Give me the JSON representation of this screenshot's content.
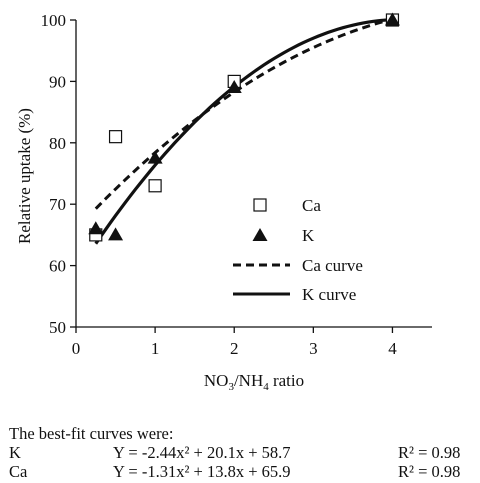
{
  "chart_data": {
    "type": "scatter",
    "xlabel": "NO3/NH4 ratio",
    "xlabel_parts": {
      "a": "NO",
      "a_sub": "3",
      "b": "/NH",
      "b_sub": "4",
      "c": " ratio"
    },
    "ylabel": "Relative uptake (%)",
    "xlim": [
      0,
      4.5
    ],
    "ylim": [
      50,
      100
    ],
    "x_ticks": [
      0,
      1,
      2,
      3,
      4
    ],
    "y_ticks": [
      50,
      60,
      70,
      80,
      90,
      100
    ],
    "grid": false,
    "legend_position": "center-right",
    "series": [
      {
        "name": "Ca",
        "marker": "open-square",
        "color": "#111111",
        "x": [
          0.25,
          0.5,
          1,
          2,
          4
        ],
        "y": [
          65,
          81,
          73,
          90,
          100
        ]
      },
      {
        "name": "K",
        "marker": "filled-triangle",
        "color": "#111111",
        "x": [
          0.25,
          0.5,
          1,
          2,
          4
        ],
        "y": [
          66,
          65,
          77.5,
          89,
          100
        ]
      }
    ],
    "curves": [
      {
        "name": "Ca curve",
        "style": "dashed",
        "coefficients": [
          -1.31,
          13.8,
          65.9
        ],
        "x_range": [
          0.25,
          4
        ]
      },
      {
        "name": "K curve",
        "style": "solid",
        "coefficients": [
          -2.44,
          20.1,
          58.7
        ],
        "x_range": [
          0.25,
          4
        ]
      }
    ]
  },
  "caption": {
    "heading": "The best-fit curves were:",
    "rows": [
      {
        "label": "K",
        "equation": "Y = -2.44x² + 20.1x + 58.7",
        "r2": "R² = 0.98"
      },
      {
        "label": "Ca",
        "equation": "Y = -1.31x² + 13.8x + 65.9",
        "r2": "R² = 0.98"
      }
    ]
  }
}
